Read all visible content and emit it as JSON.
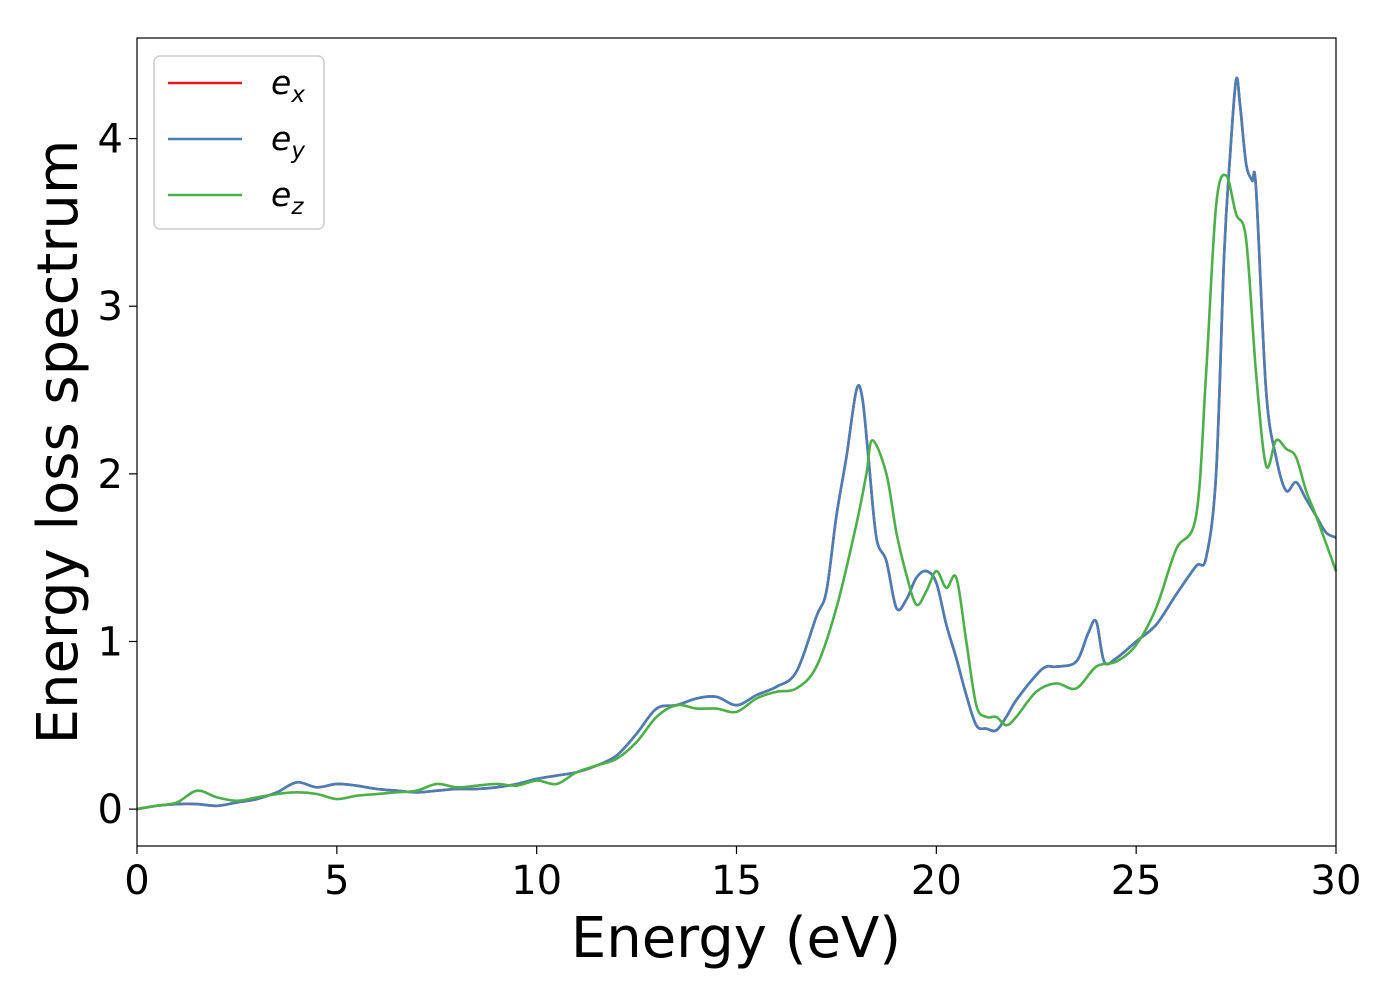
{
  "chart_data": {
    "type": "line",
    "xlabel": "Energy (eV)",
    "ylabel": "Energy loss spectrum",
    "xlim": [
      0,
      30
    ],
    "ylim": [
      -0.22,
      4.6
    ],
    "xticks": [
      "0",
      "5",
      "10",
      "15",
      "20",
      "25",
      "30"
    ],
    "yticks": [
      "0",
      "1",
      "2",
      "3",
      "4"
    ],
    "grid": false,
    "legend_position": "top-left",
    "series": [
      {
        "name": "e_x",
        "label_main": "e",
        "label_sub": "x",
        "color": "#e41a1c",
        "x": [
          0,
          0.5,
          1,
          1.5,
          2,
          2.5,
          3,
          3.5,
          4,
          4.5,
          5,
          5.5,
          6,
          6.5,
          7,
          7.5,
          8,
          8.5,
          9,
          9.5,
          10,
          10.5,
          11,
          11.5,
          12,
          12.5,
          13,
          13.5,
          14,
          14.5,
          15,
          15.5,
          16,
          16.5,
          17,
          17.25,
          17.5,
          17.75,
          18,
          18.15,
          18.3,
          18.5,
          18.75,
          19,
          19.25,
          19.5,
          19.75,
          20,
          20.25,
          20.5,
          20.75,
          21,
          21.25,
          21.5,
          21.75,
          22,
          22.5,
          22.75,
          23,
          23.5,
          23.8,
          24,
          24.2,
          24.5,
          25,
          25.5,
          26,
          26.5,
          26.75,
          27,
          27.2,
          27.35,
          27.5,
          27.6,
          27.75,
          27.9,
          28,
          28.25,
          28.5,
          28.75,
          29,
          29.25,
          29.5,
          29.75,
          30
        ],
        "y": [
          0,
          0.02,
          0.03,
          0.03,
          0.02,
          0.04,
          0.06,
          0.1,
          0.16,
          0.13,
          0.15,
          0.14,
          0.12,
          0.11,
          0.1,
          0.11,
          0.12,
          0.12,
          0.13,
          0.15,
          0.18,
          0.2,
          0.22,
          0.26,
          0.32,
          0.45,
          0.6,
          0.62,
          0.66,
          0.67,
          0.62,
          0.68,
          0.73,
          0.82,
          1.15,
          1.3,
          1.75,
          2.1,
          2.5,
          2.45,
          2.1,
          1.62,
          1.48,
          1.2,
          1.25,
          1.38,
          1.42,
          1.35,
          1.1,
          0.9,
          0.68,
          0.5,
          0.48,
          0.47,
          0.55,
          0.65,
          0.8,
          0.85,
          0.85,
          0.88,
          1.05,
          1.12,
          0.88,
          0.9,
          1.0,
          1.1,
          1.28,
          1.45,
          1.5,
          2.0,
          3.3,
          3.9,
          4.35,
          4.2,
          3.85,
          3.75,
          3.7,
          2.5,
          2.1,
          1.9,
          1.95,
          1.85,
          1.75,
          1.65,
          1.62
        ]
      },
      {
        "name": "e_y",
        "label_main": "e",
        "label_sub": "y",
        "color": "#4a7fb5",
        "x": [
          0,
          0.5,
          1,
          1.5,
          2,
          2.5,
          3,
          3.5,
          4,
          4.5,
          5,
          5.5,
          6,
          6.5,
          7,
          7.5,
          8,
          8.5,
          9,
          9.5,
          10,
          10.5,
          11,
          11.5,
          12,
          12.5,
          13,
          13.5,
          14,
          14.5,
          15,
          15.5,
          16,
          16.5,
          17,
          17.25,
          17.5,
          17.75,
          18,
          18.15,
          18.3,
          18.5,
          18.75,
          19,
          19.25,
          19.5,
          19.75,
          20,
          20.25,
          20.5,
          20.75,
          21,
          21.25,
          21.5,
          21.75,
          22,
          22.5,
          22.75,
          23,
          23.5,
          23.8,
          24,
          24.2,
          24.5,
          25,
          25.5,
          26,
          26.5,
          26.75,
          27,
          27.2,
          27.35,
          27.5,
          27.6,
          27.75,
          27.9,
          28,
          28.25,
          28.5,
          28.75,
          29,
          29.25,
          29.5,
          29.75,
          30
        ],
        "y": [
          0,
          0.02,
          0.03,
          0.03,
          0.02,
          0.04,
          0.06,
          0.1,
          0.16,
          0.13,
          0.15,
          0.14,
          0.12,
          0.11,
          0.1,
          0.11,
          0.12,
          0.12,
          0.13,
          0.15,
          0.18,
          0.2,
          0.22,
          0.26,
          0.32,
          0.45,
          0.6,
          0.62,
          0.66,
          0.67,
          0.62,
          0.68,
          0.73,
          0.82,
          1.15,
          1.3,
          1.75,
          2.1,
          2.5,
          2.45,
          2.1,
          1.62,
          1.48,
          1.2,
          1.25,
          1.38,
          1.42,
          1.35,
          1.1,
          0.9,
          0.68,
          0.5,
          0.48,
          0.47,
          0.55,
          0.65,
          0.8,
          0.85,
          0.85,
          0.88,
          1.05,
          1.12,
          0.88,
          0.9,
          1.0,
          1.1,
          1.28,
          1.45,
          1.5,
          2.0,
          3.3,
          3.9,
          4.35,
          4.2,
          3.85,
          3.75,
          3.7,
          2.5,
          2.1,
          1.9,
          1.95,
          1.85,
          1.75,
          1.65,
          1.62
        ]
      },
      {
        "name": "e_z",
        "label_main": "e",
        "label_sub": "z",
        "color": "#4daf4a",
        "x": [
          0,
          0.5,
          1,
          1.5,
          2,
          2.5,
          3,
          3.5,
          4,
          4.5,
          5,
          5.5,
          6,
          6.5,
          7,
          7.5,
          8,
          8.5,
          9,
          9.5,
          10,
          10.5,
          11,
          11.5,
          12,
          12.5,
          13,
          13.5,
          14,
          14.5,
          15,
          15.5,
          16,
          16.5,
          17,
          17.5,
          18,
          18.25,
          18.4,
          18.75,
          19,
          19.25,
          19.5,
          19.75,
          20,
          20.25,
          20.5,
          20.75,
          21,
          21.25,
          21.5,
          21.75,
          22,
          22.5,
          23,
          23.5,
          24,
          24.5,
          25,
          25.5,
          26,
          26.5,
          26.75,
          27,
          27.25,
          27.5,
          27.75,
          28,
          28.25,
          28.5,
          28.75,
          29,
          29.25,
          29.5,
          30
        ],
        "y": [
          0,
          0.02,
          0.04,
          0.11,
          0.07,
          0.05,
          0.07,
          0.09,
          0.1,
          0.09,
          0.06,
          0.08,
          0.09,
          0.1,
          0.11,
          0.15,
          0.13,
          0.14,
          0.15,
          0.14,
          0.17,
          0.15,
          0.22,
          0.26,
          0.3,
          0.4,
          0.55,
          0.62,
          0.6,
          0.6,
          0.58,
          0.66,
          0.7,
          0.72,
          0.85,
          1.2,
          1.7,
          2.0,
          2.2,
          2.0,
          1.65,
          1.4,
          1.22,
          1.3,
          1.42,
          1.32,
          1.38,
          1.0,
          0.62,
          0.55,
          0.55,
          0.5,
          0.55,
          0.7,
          0.75,
          0.72,
          0.85,
          0.88,
          0.98,
          1.2,
          1.55,
          1.75,
          2.6,
          3.6,
          3.78,
          3.55,
          3.4,
          2.6,
          2.05,
          2.2,
          2.15,
          2.1,
          1.9,
          1.75,
          1.42
        ]
      }
    ]
  }
}
